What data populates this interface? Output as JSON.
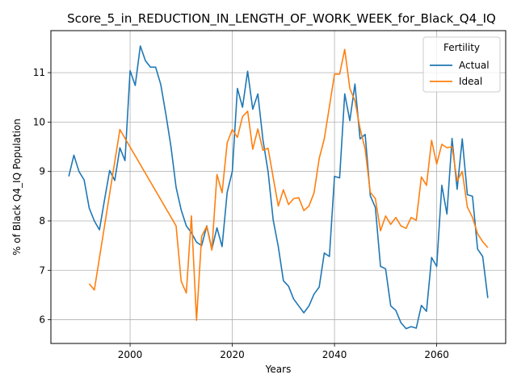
{
  "chart_data": {
    "type": "line",
    "title": "Score_5_in_REDUCTION_IN_LENGTH_OF_WORK_WEEK_for_Black_Q4_IQ",
    "xlabel": "Years",
    "ylabel": "% of Black Q4_IQ Population",
    "xlim": [
      1984.5,
      2073.5
    ],
    "ylim": [
      5.52,
      11.85
    ],
    "x_ticks": [
      2000,
      2020,
      2040,
      2060
    ],
    "y_ticks": [
      6,
      7,
      8,
      9,
      10,
      11
    ],
    "grid": true,
    "legend": {
      "title": "Fertility",
      "placement": "top-right"
    },
    "series": [
      {
        "name": "Actual",
        "color": "#1f77b4",
        "points": [
          [
            1988,
            8.9
          ],
          [
            1989,
            9.33
          ],
          [
            1990,
            9.0
          ],
          [
            1991,
            8.83
          ],
          [
            1992,
            8.26
          ],
          [
            1993,
            8.0
          ],
          [
            1994,
            7.82
          ],
          [
            1995,
            8.43
          ],
          [
            1996,
            9.02
          ],
          [
            1997,
            8.82
          ],
          [
            1998,
            9.48
          ],
          [
            1999,
            9.22
          ],
          [
            2000,
            11.04
          ],
          [
            2001,
            10.74
          ],
          [
            2002,
            11.54
          ],
          [
            2003,
            11.24
          ],
          [
            2004,
            11.11
          ],
          [
            2005,
            11.11
          ],
          [
            2006,
            10.76
          ],
          [
            2007,
            10.16
          ],
          [
            2008,
            9.5
          ],
          [
            2009,
            8.68
          ],
          [
            2010,
            8.22
          ],
          [
            2011,
            7.9
          ],
          [
            2012,
            7.76
          ],
          [
            2013,
            7.57
          ],
          [
            2014,
            7.5
          ],
          [
            2015,
            7.9
          ],
          [
            2016,
            7.43
          ],
          [
            2017,
            7.86
          ],
          [
            2018,
            7.48
          ],
          [
            2019,
            8.58
          ],
          [
            2020,
            9.0
          ],
          [
            2021,
            10.68
          ],
          [
            2022,
            10.3
          ],
          [
            2023,
            11.03
          ],
          [
            2024,
            10.26
          ],
          [
            2025,
            10.57
          ],
          [
            2026,
            9.64
          ],
          [
            2027,
            9.0
          ],
          [
            2028,
            8.02
          ],
          [
            2029,
            7.48
          ],
          [
            2030,
            6.79
          ],
          [
            2031,
            6.68
          ],
          [
            2032,
            6.42
          ],
          [
            2033,
            6.28
          ],
          [
            2034,
            6.14
          ],
          [
            2035,
            6.28
          ],
          [
            2036,
            6.52
          ],
          [
            2037,
            6.66
          ],
          [
            2038,
            7.35
          ],
          [
            2039,
            7.28
          ],
          [
            2040,
            8.9
          ],
          [
            2041,
            8.87
          ],
          [
            2042,
            10.57
          ],
          [
            2043,
            10.03
          ],
          [
            2044,
            10.77
          ],
          [
            2045,
            9.66
          ],
          [
            2046,
            9.75
          ],
          [
            2047,
            8.51
          ],
          [
            2048,
            8.27
          ],
          [
            2049,
            7.08
          ],
          [
            2050,
            7.03
          ],
          [
            2051,
            6.28
          ],
          [
            2052,
            6.19
          ],
          [
            2053,
            5.94
          ],
          [
            2054,
            5.82
          ],
          [
            2055,
            5.86
          ],
          [
            2056,
            5.83
          ],
          [
            2057,
            6.29
          ],
          [
            2058,
            6.17
          ],
          [
            2059,
            7.26
          ],
          [
            2060,
            7.08
          ],
          [
            2061,
            8.72
          ],
          [
            2062,
            8.14
          ],
          [
            2063,
            9.67
          ],
          [
            2064,
            8.64
          ],
          [
            2065,
            9.66
          ],
          [
            2066,
            8.53
          ],
          [
            2067,
            8.5
          ],
          [
            2068,
            7.43
          ],
          [
            2069,
            7.28
          ],
          [
            2070,
            6.44
          ]
        ]
      },
      {
        "name": "Ideal",
        "color": "#ff7f0e",
        "points": [
          [
            1992,
            6.73
          ],
          [
            1993,
            6.6
          ],
          [
            1998,
            9.85
          ],
          [
            2009,
            7.9
          ],
          [
            2010,
            6.78
          ],
          [
            2011,
            6.54
          ],
          [
            2012,
            8.1
          ],
          [
            2013,
            5.99
          ],
          [
            2014,
            7.69
          ],
          [
            2015,
            7.89
          ],
          [
            2016,
            7.41
          ],
          [
            2017,
            8.94
          ],
          [
            2018,
            8.57
          ],
          [
            2019,
            9.58
          ],
          [
            2020,
            9.85
          ],
          [
            2021,
            9.69
          ],
          [
            2022,
            10.11
          ],
          [
            2023,
            10.22
          ],
          [
            2024,
            9.45
          ],
          [
            2025,
            9.86
          ],
          [
            2026,
            9.43
          ],
          [
            2027,
            9.47
          ],
          [
            2028,
            8.88
          ],
          [
            2029,
            8.3
          ],
          [
            2030,
            8.63
          ],
          [
            2031,
            8.33
          ],
          [
            2032,
            8.45
          ],
          [
            2033,
            8.47
          ],
          [
            2034,
            8.21
          ],
          [
            2035,
            8.3
          ],
          [
            2036,
            8.57
          ],
          [
            2037,
            9.26
          ],
          [
            2038,
            9.66
          ],
          [
            2039,
            10.31
          ],
          [
            2040,
            10.97
          ],
          [
            2041,
            10.97
          ],
          [
            2042,
            11.47
          ],
          [
            2043,
            10.68
          ],
          [
            2044,
            10.43
          ],
          [
            2045,
            9.87
          ],
          [
            2046,
            9.45
          ],
          [
            2047,
            8.58
          ],
          [
            2048,
            8.45
          ],
          [
            2049,
            7.8
          ],
          [
            2050,
            8.1
          ],
          [
            2051,
            7.93
          ],
          [
            2052,
            8.07
          ],
          [
            2053,
            7.9
          ],
          [
            2054,
            7.85
          ],
          [
            2055,
            8.07
          ],
          [
            2056,
            8.01
          ],
          [
            2057,
            8.89
          ],
          [
            2058,
            8.72
          ],
          [
            2059,
            9.63
          ],
          [
            2060,
            9.15
          ],
          [
            2061,
            9.55
          ],
          [
            2062,
            9.48
          ],
          [
            2063,
            9.5
          ],
          [
            2064,
            8.81
          ],
          [
            2065,
            9.0
          ],
          [
            2066,
            8.28
          ],
          [
            2067,
            8.07
          ],
          [
            2068,
            7.74
          ],
          [
            2069,
            7.58
          ],
          [
            2070,
            7.46
          ]
        ]
      }
    ]
  }
}
